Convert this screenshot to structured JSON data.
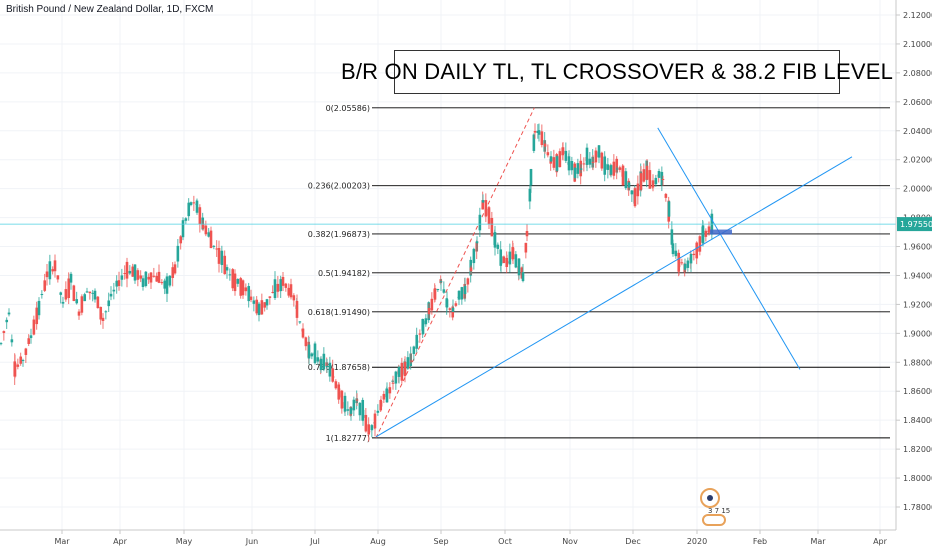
{
  "header": {
    "symbol_title": "British Pound / New Zealand Dollar, 1D, FXCM"
  },
  "annotation": {
    "headline": "B/R ON DAILY TL, TL CROSSOVER & 38.2 FIB LEVEL"
  },
  "colors": {
    "up_candle": "#26a69a",
    "down_candle": "#ef5350",
    "trendline": "#2196f3",
    "price_line": "#4dd0e1",
    "fib_line": "#000000",
    "fib_diagonal": "#ef5350",
    "price_marker_bg": "#26a69a"
  },
  "badge": {
    "icon": "idea-badge-icon",
    "stats": "3 7 15"
  },
  "chart_data": {
    "type": "candlestick",
    "title": "",
    "xlabel": "",
    "ylabel": "",
    "ylim": [
      1.77,
      2.125
    ],
    "grid": true,
    "y_ticks": [
      "2.12000",
      "2.10000",
      "2.08000",
      "2.06000",
      "2.04000",
      "2.02000",
      "2.00000",
      "1.98000",
      "1.96000",
      "1.94000",
      "1.92000",
      "1.90000",
      "1.88000",
      "1.86000",
      "1.84000",
      "1.82000",
      "1.80000",
      "1.78000"
    ],
    "x_ticks": [
      "Mar",
      "Apr",
      "May",
      "Jun",
      "Jul",
      "Aug",
      "Sep",
      "Oct",
      "Nov",
      "Dec",
      "2020",
      "Feb",
      "Mar",
      "Apr"
    ],
    "current_price": {
      "label": "1.97550",
      "value": 1.9755
    },
    "fib_levels": [
      {
        "label": "0(2.05586)",
        "value": 2.05586
      },
      {
        "label": "0.236(2.00203)",
        "value": 2.00203
      },
      {
        "label": "0.382(1.96873)",
        "value": 1.96873
      },
      {
        "label": "0.5(1.94182)",
        "value": 1.94182
      },
      {
        "label": "0.618(1.91490)",
        "value": 1.9149
      },
      {
        "label": "0.786(1.87658)",
        "value": 1.87658
      },
      {
        "label": "1(1.82777)",
        "value": 1.82777
      }
    ],
    "price_path": [
      [
        0,
        1.893
      ],
      [
        8,
        1.915
      ],
      [
        14,
        1.875
      ],
      [
        22,
        1.882
      ],
      [
        30,
        1.898
      ],
      [
        38,
        1.918
      ],
      [
        46,
        1.94
      ],
      [
        54,
        1.947
      ],
      [
        62,
        1.92
      ],
      [
        70,
        1.937
      ],
      [
        78,
        1.915
      ],
      [
        86,
        1.93
      ],
      [
        94,
        1.926
      ],
      [
        102,
        1.91
      ],
      [
        110,
        1.925
      ],
      [
        118,
        1.936
      ],
      [
        126,
        1.944
      ],
      [
        134,
        1.942
      ],
      [
        142,
        1.936
      ],
      [
        150,
        1.94
      ],
      [
        158,
        1.938
      ],
      [
        166,
        1.932
      ],
      [
        174,
        1.945
      ],
      [
        182,
        1.972
      ],
      [
        190,
        1.99
      ],
      [
        196,
        1.988
      ],
      [
        202,
        1.975
      ],
      [
        210,
        1.965
      ],
      [
        218,
        1.955
      ],
      [
        226,
        1.945
      ],
      [
        234,
        1.936
      ],
      [
        242,
        1.932
      ],
      [
        250,
        1.925
      ],
      [
        258,
        1.916
      ],
      [
        266,
        1.922
      ],
      [
        274,
        1.93
      ],
      [
        282,
        1.935
      ],
      [
        290,
        1.928
      ],
      [
        296,
        1.918
      ],
      [
        302,
        1.9
      ],
      [
        308,
        1.888
      ],
      [
        314,
        1.885
      ],
      [
        320,
        1.88
      ],
      [
        326,
        1.878
      ],
      [
        332,
        1.87
      ],
      [
        338,
        1.86
      ],
      [
        344,
        1.85
      ],
      [
        350,
        1.846
      ],
      [
        356,
        1.853
      ],
      [
        362,
        1.845
      ],
      [
        368,
        1.832
      ],
      [
        374,
        1.84
      ],
      [
        380,
        1.852
      ],
      [
        386,
        1.858
      ],
      [
        392,
        1.866
      ],
      [
        398,
        1.872
      ],
      [
        404,
        1.876
      ],
      [
        410,
        1.882
      ],
      [
        416,
        1.895
      ],
      [
        422,
        1.905
      ],
      [
        428,
        1.915
      ],
      [
        434,
        1.928
      ],
      [
        440,
        1.935
      ],
      [
        446,
        1.92
      ],
      [
        452,
        1.915
      ],
      [
        458,
        1.925
      ],
      [
        464,
        1.93
      ],
      [
        470,
        1.945
      ],
      [
        476,
        1.962
      ],
      [
        482,
        1.99
      ],
      [
        488,
        1.982
      ],
      [
        494,
        1.965
      ],
      [
        500,
        1.952
      ],
      [
        506,
        1.948
      ],
      [
        512,
        1.955
      ],
      [
        518,
        1.945
      ],
      [
        522,
        1.94
      ],
      [
        526,
        1.968
      ],
      [
        530,
        2.008
      ],
      [
        534,
        2.04
      ],
      [
        538,
        2.04
      ],
      [
        544,
        2.03
      ],
      [
        550,
        2.02
      ],
      [
        556,
        2.018
      ],
      [
        562,
        2.025
      ],
      [
        568,
        2.018
      ],
      [
        574,
        2.012
      ],
      [
        580,
        2.015
      ],
      [
        586,
        2.022
      ],
      [
        592,
        2.018
      ],
      [
        598,
        2.025
      ],
      [
        604,
        2.015
      ],
      [
        610,
        2.012
      ],
      [
        616,
        2.015
      ],
      [
        622,
        2.01
      ],
      [
        628,
        2.002
      ],
      [
        634,
        1.995
      ],
      [
        640,
        2.005
      ],
      [
        646,
        2.012
      ],
      [
        652,
        2.002
      ],
      [
        658,
        2.01
      ],
      [
        662,
        2.005
      ],
      [
        668,
        1.985
      ],
      [
        672,
        1.96
      ],
      [
        678,
        1.95
      ],
      [
        684,
        1.946
      ],
      [
        690,
        1.952
      ],
      [
        696,
        1.958
      ],
      [
        702,
        1.968
      ],
      [
        708,
        1.972
      ],
      [
        712,
        1.975
      ]
    ],
    "lines": {
      "rising_trendline": {
        "from": [
          "2019-07-31",
          1.8285
        ],
        "to": [
          "2020-03-18",
          2.022
        ]
      },
      "falling_trendline": {
        "from": [
          "2019-12-13",
          2.042
        ],
        "to": [
          "2020-02-21",
          1.875
        ]
      },
      "fib_swing": {
        "from": [
          "2019-07-31",
          1.82777
        ],
        "to": [
          "2019-10-15",
          2.05586
        ]
      }
    }
  }
}
